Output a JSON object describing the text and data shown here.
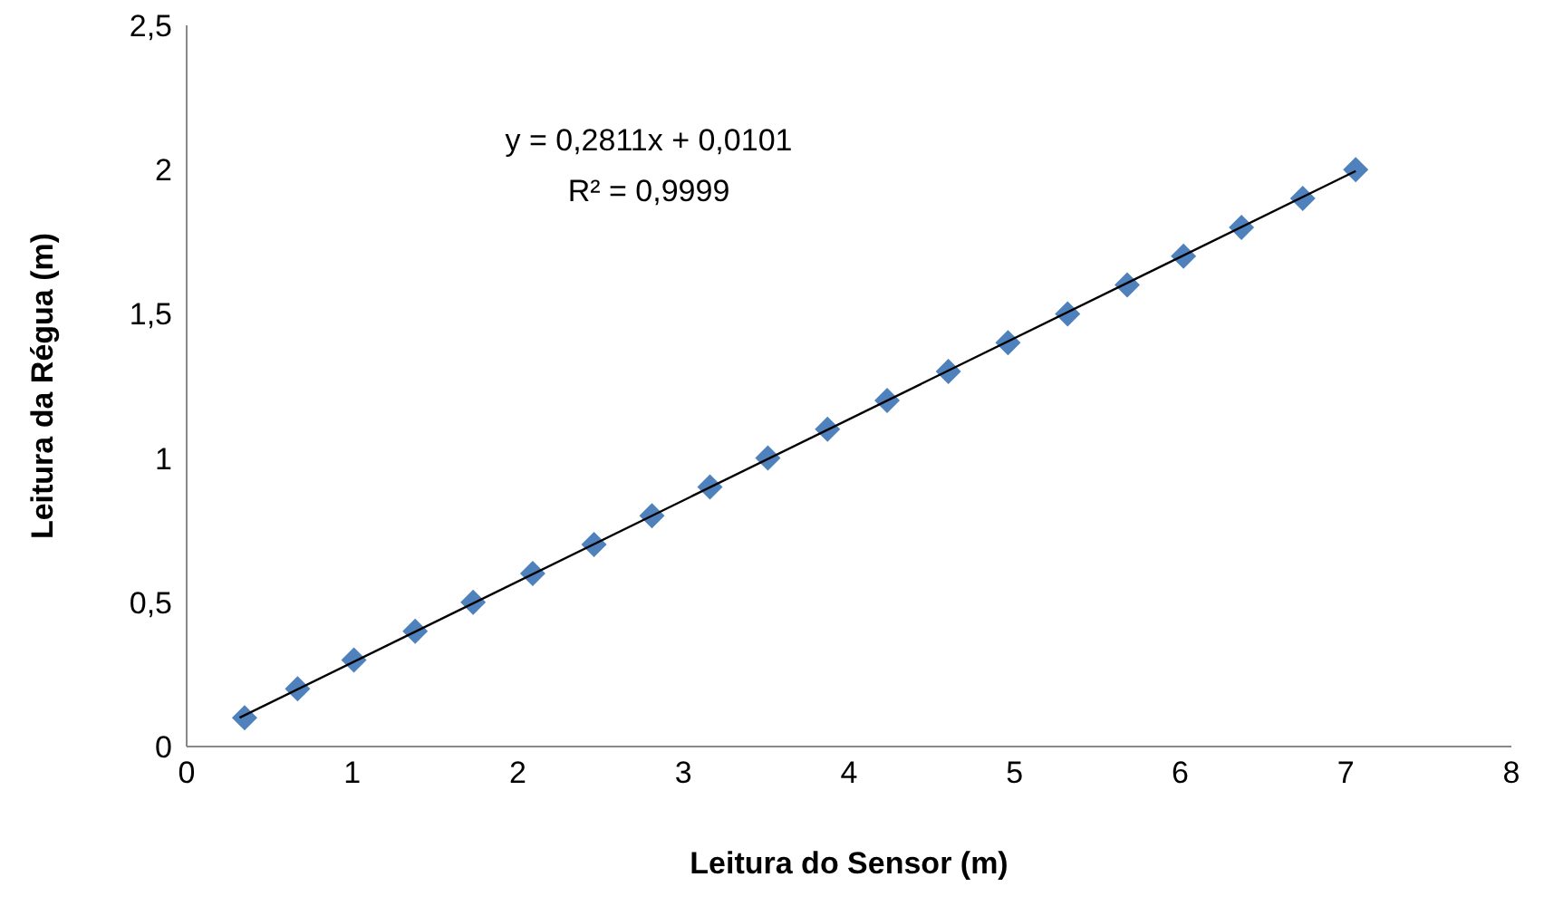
{
  "chart_data": {
    "type": "scatter",
    "xlabel": "Leitura do Sensor (m)",
    "ylabel": "Leitura da Régua (m)",
    "annotations": [
      "y = 0,2811x + 0,0101",
      "R² = 0,9999"
    ],
    "xlim": [
      0,
      8
    ],
    "xticks": [
      0,
      1,
      2,
      3,
      4,
      5,
      6,
      7,
      8
    ],
    "ylim": [
      0,
      2.5
    ],
    "yticks": [
      0,
      {
        "value": 0.5,
        "label": "0,5"
      },
      1,
      {
        "value": 1.5,
        "label": "1,5"
      },
      2,
      {
        "value": 2.5,
        "label": "2,5"
      }
    ],
    "grid": false,
    "legend": false,
    "marker": "diamond",
    "series": [
      {
        "color": "#4f81bd",
        "x": [
          0.35,
          0.67,
          1.01,
          1.38,
          1.73,
          2.09,
          2.46,
          2.81,
          3.16,
          3.51,
          3.87,
          4.23,
          4.6,
          4.96,
          5.32,
          5.68,
          6.02,
          6.37,
          6.74,
          7.06
        ],
        "values": [
          0.1,
          0.2,
          0.3,
          0.4,
          0.5,
          0.6,
          0.7,
          0.8,
          0.9,
          1.0,
          1.1,
          1.2,
          1.3,
          1.4,
          1.5,
          1.6,
          1.7,
          1.8,
          1.9,
          2.0
        ]
      },
      {
        "type": "line",
        "color": "#000000",
        "line_style": "solid",
        "marker": "none",
        "x": [
          0.32,
          7.06
        ],
        "values": [
          0.1,
          1.995
        ]
      }
    ]
  }
}
